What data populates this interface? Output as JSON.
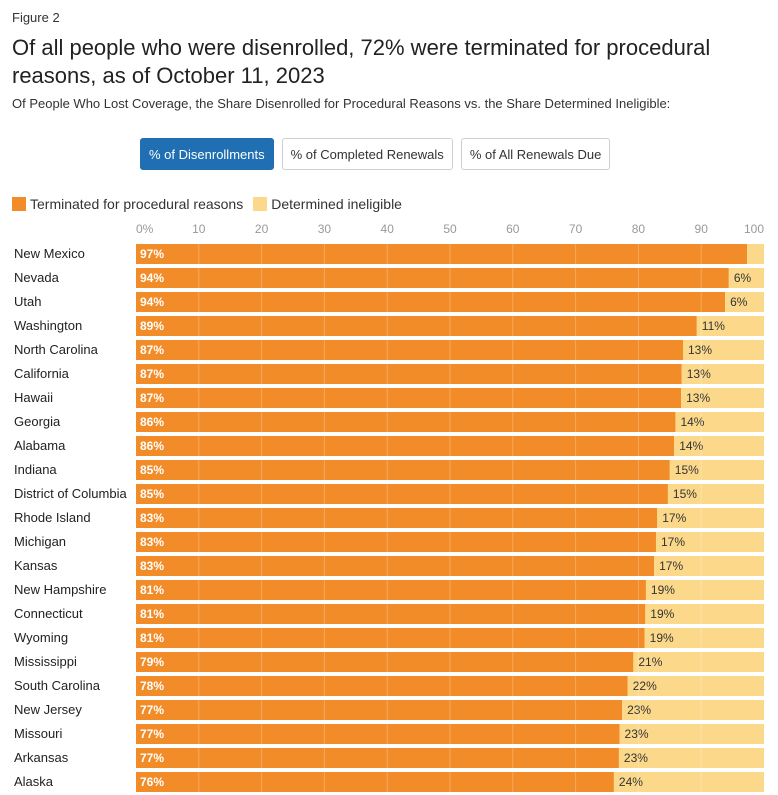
{
  "figure_label": "Figure 2",
  "title": "Of all people who were disenrolled, 72% were terminated for procedural reasons, as of October 11, 2023",
  "subtitle": "Of People Who Lost Coverage, the Share Disenrolled for Procedural Reasons vs. the Share Determined Ineligible:",
  "tabs": [
    {
      "label": "% of Disenrollments",
      "active": true
    },
    {
      "label": "% of Completed Renewals",
      "active": false
    },
    {
      "label": "% of All Renewals Due",
      "active": false
    }
  ],
  "colors": {
    "procedural": "#f28c28",
    "ineligible": "#fcd98a",
    "active_tab": "#1f6fb2"
  },
  "chart_data": {
    "type": "bar",
    "orientation": "horizontal",
    "stacked": true,
    "xlim": [
      0,
      100
    ],
    "x_ticks": [
      "0%",
      "10",
      "20",
      "30",
      "40",
      "50",
      "60",
      "70",
      "80",
      "90",
      "100"
    ],
    "legend": [
      "Terminated for procedural reasons",
      "Determined ineligible"
    ],
    "categories": [
      "New Mexico",
      "Nevada",
      "Utah",
      "Washington",
      "North Carolina",
      "California",
      "Hawaii",
      "Georgia",
      "Alabama",
      "Indiana",
      "District of Columbia",
      "Rhode Island",
      "Michigan",
      "Kansas",
      "New Hampshire",
      "Connecticut",
      "Wyoming",
      "Mississippi",
      "South Carolina",
      "New Jersey",
      "Missouri",
      "Arkansas",
      "Alaska"
    ],
    "series": [
      {
        "name": "Terminated for procedural reasons",
        "values": [
          97.3,
          94.4,
          93.8,
          89.3,
          87.1,
          86.9,
          86.8,
          85.9,
          85.7,
          85.0,
          84.7,
          83.0,
          82.8,
          82.5,
          81.2,
          81.1,
          81.0,
          79.2,
          78.3,
          77.4,
          77.0,
          76.9,
          76.1
        ],
        "labels": [
          "97%",
          "94%",
          "94%",
          "89%",
          "87%",
          "87%",
          "87%",
          "86%",
          "86%",
          "85%",
          "85%",
          "83%",
          "83%",
          "83%",
          "81%",
          "81%",
          "81%",
          "79%",
          "78%",
          "77%",
          "77%",
          "77%",
          "76%"
        ]
      },
      {
        "name": "Determined ineligible",
        "values": [
          2.7,
          5.6,
          6.2,
          10.7,
          12.9,
          13.1,
          13.2,
          14.1,
          14.3,
          15.0,
          15.3,
          17.0,
          17.2,
          17.5,
          18.8,
          18.9,
          19.0,
          20.8,
          21.7,
          22.6,
          23.0,
          23.1,
          23.9
        ],
        "labels": [
          "",
          "6%",
          "6%",
          "11%",
          "13%",
          "13%",
          "13%",
          "14%",
          "14%",
          "15%",
          "15%",
          "17%",
          "17%",
          "17%",
          "19%",
          "19%",
          "19%",
          "21%",
          "22%",
          "23%",
          "23%",
          "23%",
          "24%"
        ]
      }
    ]
  }
}
